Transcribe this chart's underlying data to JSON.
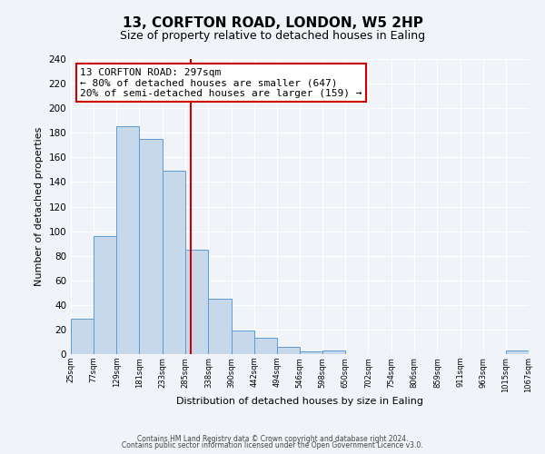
{
  "title1": "13, CORFTON ROAD, LONDON, W5 2HP",
  "title2": "Size of property relative to detached houses in Ealing",
  "xlabel": "Distribution of detached houses by size in Ealing",
  "ylabel": "Number of detached properties",
  "bin_edges": [
    25,
    77,
    129,
    181,
    233,
    285,
    338,
    390,
    442,
    494,
    546,
    598,
    650,
    702,
    754,
    806,
    859,
    911,
    963,
    1015,
    1067
  ],
  "bar_heights": [
    29,
    96,
    185,
    175,
    149,
    85,
    45,
    19,
    13,
    6,
    2,
    3,
    0,
    0,
    0,
    0,
    0,
    0,
    0,
    3
  ],
  "bar_color": "#c8d8eb",
  "bar_edge_color": "#5b9bd5",
  "property_size": 297,
  "vline_color": "#cc0000",
  "annotation_text": "13 CORFTON ROAD: 297sqm\n← 80% of detached houses are smaller (647)\n20% of semi-detached houses are larger (159) →",
  "annotation_box_color": "#ffffff",
  "annotation_box_edge_color": "#cc0000",
  "ylim": [
    0,
    240
  ],
  "yticks": [
    0,
    20,
    40,
    60,
    80,
    100,
    120,
    140,
    160,
    180,
    200,
    220,
    240
  ],
  "footer1": "Contains HM Land Registry data © Crown copyright and database right 2024.",
  "footer2": "Contains public sector information licensed under the Open Government Licence v3.0.",
  "bg_color": "#f0f4f8",
  "grid_color": "#ffffff",
  "title1_fontsize": 11,
  "title2_fontsize": 9,
  "annot_fontsize": 8,
  "xlabel_fontsize": 8,
  "ylabel_fontsize": 8
}
